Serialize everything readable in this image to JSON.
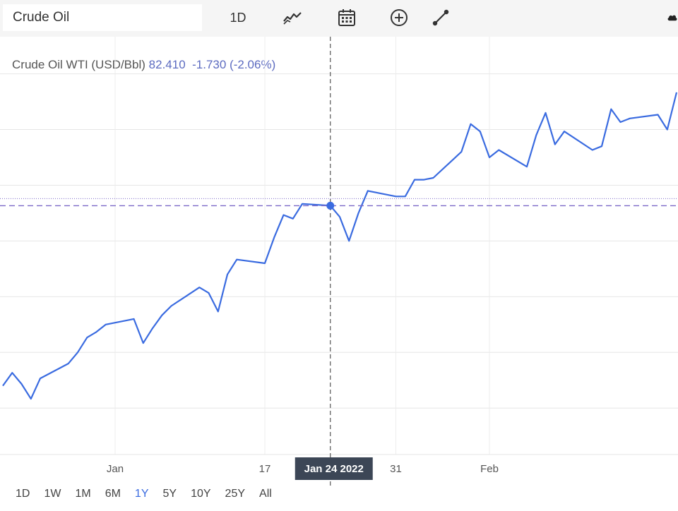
{
  "toolbar": {
    "search_value": "Crude Oil",
    "interval_label": "1D"
  },
  "header": {
    "name": "Crude Oil WTI (USD/Bbl)",
    "price": "82.410",
    "change": "-1.730",
    "change_pct": "(-2.06%)"
  },
  "crosshair": {
    "date_label": "Jan 24 2022"
  },
  "ranges": [
    "1D",
    "1W",
    "1M",
    "6M",
    "1Y",
    "5Y",
    "10Y",
    "25Y",
    "All"
  ],
  "active_range": "1Y",
  "colors": {
    "line": "#3a6be0",
    "crosshair": "#555555",
    "price_line": "#7b68c8"
  },
  "chart_data": {
    "type": "line",
    "title": "Crude Oil WTI (USD/Bbl)",
    "x_tick_labels": [
      "Jan",
      "17",
      "31",
      "Feb"
    ],
    "grid": true,
    "series": [
      {
        "name": "Crude Oil WTI (USD/Bbl)",
        "x": [
          "2021-12-20",
          "2021-12-21",
          "2021-12-22",
          "2021-12-23",
          "2021-12-24",
          "2021-12-27",
          "2021-12-28",
          "2021-12-29",
          "2021-12-30",
          "2021-12-31",
          "2022-01-03",
          "2022-01-04",
          "2022-01-05",
          "2022-01-06",
          "2022-01-07",
          "2022-01-10",
          "2022-01-11",
          "2022-01-12",
          "2022-01-13",
          "2022-01-14",
          "2022-01-17",
          "2022-01-18",
          "2022-01-19",
          "2022-01-20",
          "2022-01-21",
          "2022-01-24",
          "2022-01-25",
          "2022-01-26",
          "2022-01-27",
          "2022-01-28",
          "2022-01-31",
          "2022-02-01",
          "2022-02-02",
          "2022-02-03",
          "2022-02-04",
          "2022-02-07",
          "2022-02-08",
          "2022-02-09",
          "2022-02-10",
          "2022-02-11",
          "2022-02-14",
          "2022-02-15",
          "2022-02-16",
          "2022-02-17",
          "2022-02-18",
          "2022-02-21",
          "2022-02-22",
          "2022-02-23",
          "2022-02-24",
          "2022-02-25",
          "2022-02-28",
          "2022-03-01",
          "2022-03-02"
        ],
        "y": [
          68.2,
          68.9,
          68.3,
          67.5,
          68.6,
          69.4,
          70.0,
          70.8,
          71.1,
          71.5,
          71.8,
          70.5,
          71.3,
          72.0,
          72.5,
          73.5,
          73.2,
          72.2,
          74.2,
          75.0,
          74.8,
          76.2,
          77.4,
          77.2,
          78.0,
          77.9,
          77.3,
          76.0,
          77.5,
          78.7,
          78.4,
          78.4,
          79.3,
          79.3,
          79.4,
          80.8,
          82.3,
          81.9,
          80.5,
          80.9,
          80.0,
          81.7,
          82.9,
          81.2,
          81.9,
          80.9,
          81.1,
          83.1,
          82.4,
          82.6,
          82.8,
          82.0,
          84.0
        ]
      }
    ],
    "ylim": [
      64.5,
      87.0
    ]
  }
}
